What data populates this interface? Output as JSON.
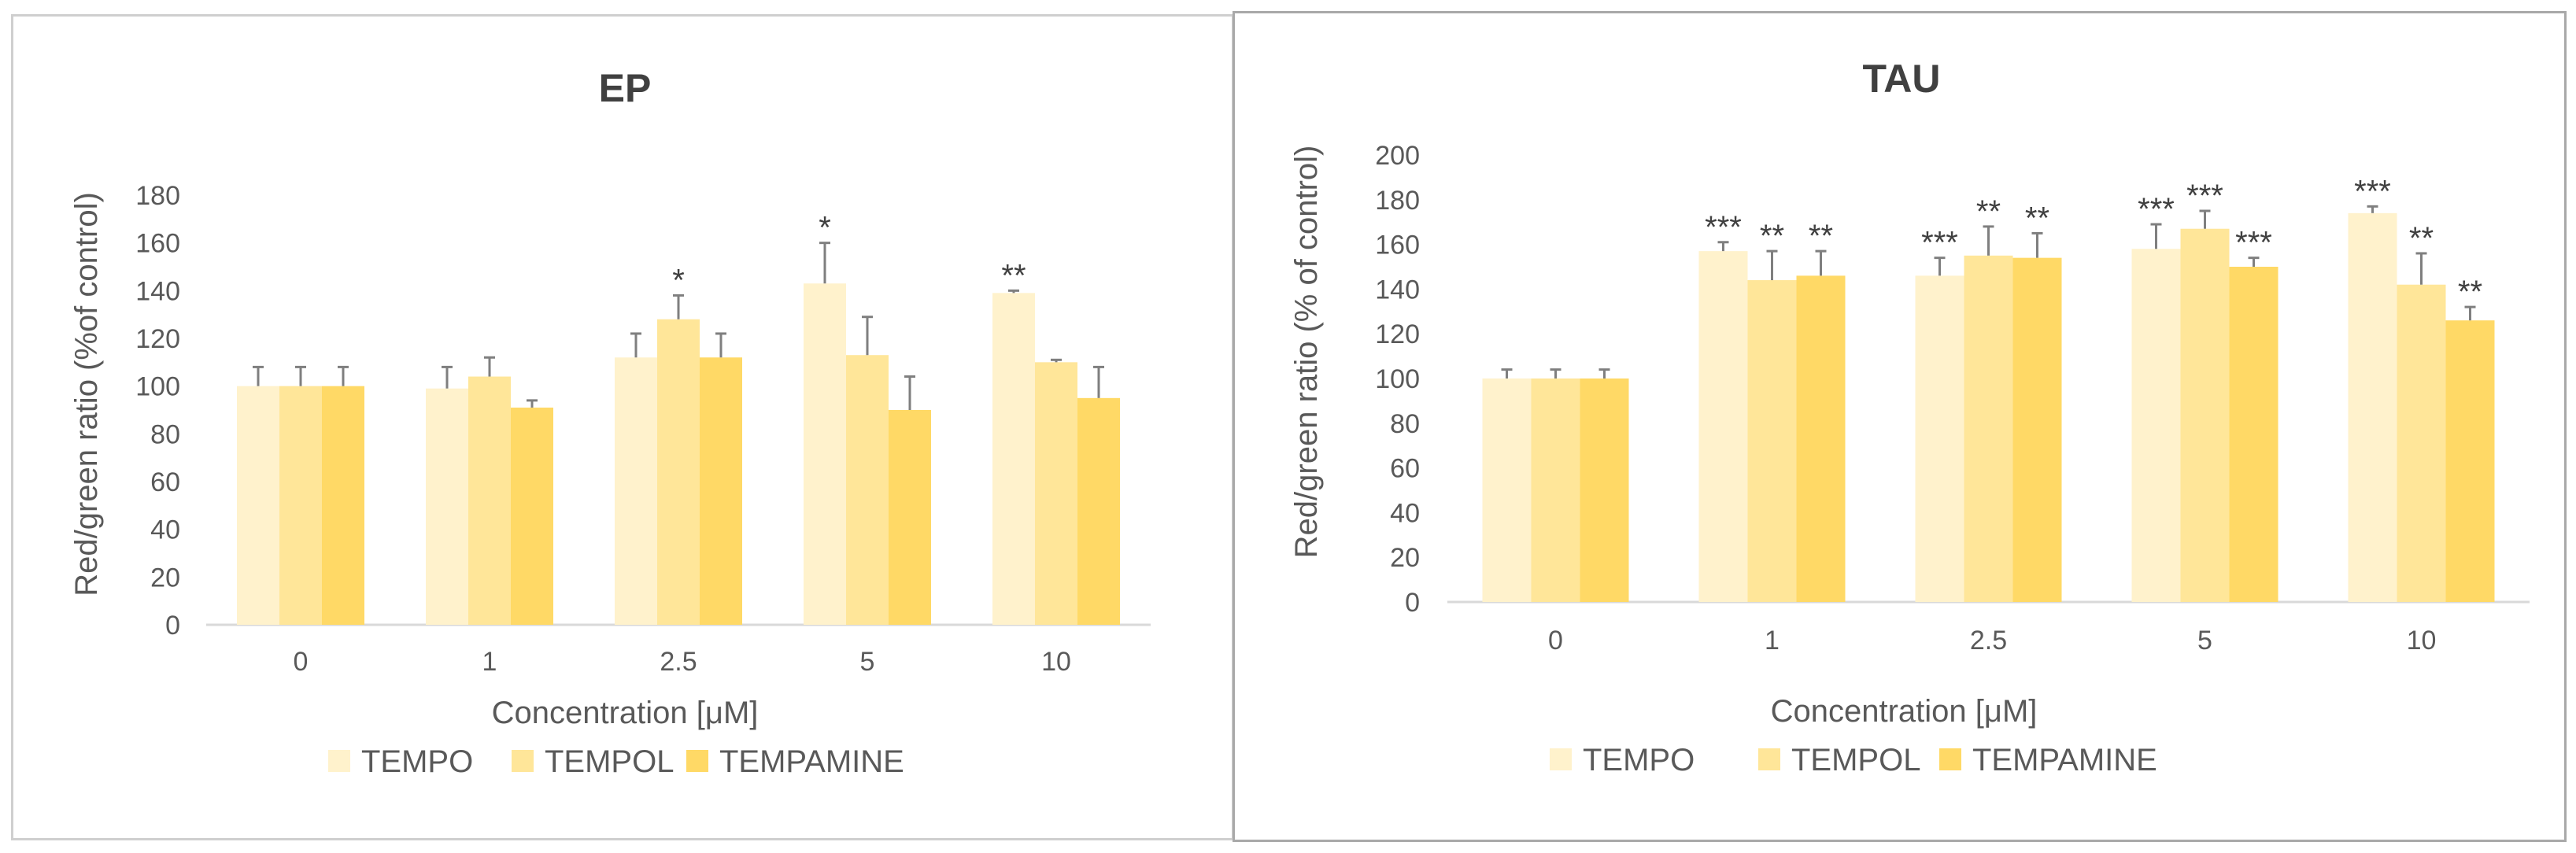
{
  "chart_data": [
    {
      "type": "bar",
      "title": "EP",
      "xlabel": "Concentration [μM]",
      "ylabel": "Red/green ratio (%of control)",
      "ylim": [
        0,
        180
      ],
      "yticks": [
        0,
        20,
        40,
        60,
        80,
        100,
        120,
        140,
        160,
        180
      ],
      "categories": [
        "0",
        "1",
        "2.5",
        "5",
        "10"
      ],
      "colors": [
        "#fff2cc",
        "#ffe699",
        "#ffd966"
      ],
      "legend_position": "bottom",
      "series": [
        {
          "name": "TEMPO",
          "values": [
            100,
            99,
            112,
            143,
            139
          ],
          "errors": [
            8,
            9,
            10,
            17,
            1
          ],
          "significance": [
            "",
            "",
            "",
            "*",
            "**"
          ]
        },
        {
          "name": "TEMPOL",
          "values": [
            100,
            104,
            128,
            113,
            110
          ],
          "errors": [
            8,
            8,
            10,
            16,
            1
          ],
          "significance": [
            "",
            "",
            "*",
            "",
            ""
          ]
        },
        {
          "name": "TEMPAMINE",
          "values": [
            100,
            91,
            112,
            90,
            95
          ],
          "errors": [
            8,
            3,
            10,
            14,
            13
          ],
          "significance": [
            "",
            "",
            "",
            "",
            ""
          ]
        }
      ]
    },
    {
      "type": "bar",
      "title": "TAU",
      "xlabel": "Concentration [μM]",
      "ylabel": "Red/green ratio (% of control)",
      "ylim": [
        0,
        200
      ],
      "yticks": [
        0,
        20,
        40,
        60,
        80,
        100,
        120,
        140,
        160,
        180,
        200
      ],
      "categories": [
        "0",
        "1",
        "2.5",
        "5",
        "10"
      ],
      "colors": [
        "#fff2cc",
        "#ffe699",
        "#ffd966"
      ],
      "legend_position": "bottom",
      "series": [
        {
          "name": "TEMPO",
          "values": [
            100,
            157,
            146,
            158,
            174
          ],
          "errors": [
            4,
            4,
            8,
            11,
            3
          ],
          "significance": [
            "",
            "***",
            "***",
            "***",
            "***"
          ]
        },
        {
          "name": "TEMPOL",
          "values": [
            100,
            144,
            155,
            167,
            142
          ],
          "errors": [
            4,
            13,
            13,
            8,
            14
          ],
          "significance": [
            "",
            "**",
            "**",
            "***",
            "**"
          ]
        },
        {
          "name": "TEMPAMINE",
          "values": [
            100,
            146,
            154,
            150,
            126
          ],
          "errors": [
            4,
            11,
            11,
            4,
            6
          ],
          "significance": [
            "",
            "**",
            "**",
            "***",
            "**"
          ]
        }
      ]
    }
  ]
}
